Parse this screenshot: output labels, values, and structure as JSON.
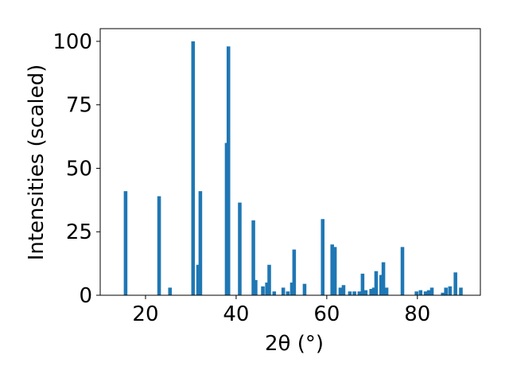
{
  "chart_data": {
    "type": "bar",
    "x_label": "2θ (°)",
    "y_label": "Intensities (scaled)",
    "color": "#1f77b4",
    "x": [
      15.6,
      23.0,
      25.4,
      30.5,
      31.6,
      32.1,
      37.9,
      38.3,
      40.8,
      43.8,
      44.3,
      45.9,
      46.8,
      47.3,
      48.4,
      50.4,
      51.4,
      52.3,
      52.8,
      55.1,
      59.1,
      61.2,
      61.8,
      63.0,
      63.7,
      65.1,
      66.1,
      67.2,
      67.9,
      68.6,
      69.8,
      70.4,
      70.9,
      72.0,
      72.5,
      73.2,
      76.7,
      79.8,
      80.7,
      81.8,
      82.5,
      83.2,
      85.6,
      86.3,
      87.2,
      88.4,
      89.6
    ],
    "values": [
      41,
      39,
      3,
      100,
      12,
      41,
      60,
      98,
      36.5,
      29.5,
      6,
      3.5,
      5,
      12,
      1.5,
      3,
      1.5,
      5,
      18,
      4.5,
      30,
      20,
      19,
      3,
      4,
      1.5,
      1.5,
      1.5,
      8.5,
      2,
      2.5,
      3,
      9.5,
      8,
      13,
      3,
      19,
      1.5,
      2,
      1.5,
      2,
      3,
      1,
      3,
      3.5,
      9,
      3
    ],
    "xlim": [
      10,
      93.9
    ],
    "ylim": [
      0,
      105
    ],
    "xticks": [
      20,
      40,
      60,
      80
    ],
    "yticks": [
      0,
      25,
      50,
      75,
      100
    ]
  }
}
